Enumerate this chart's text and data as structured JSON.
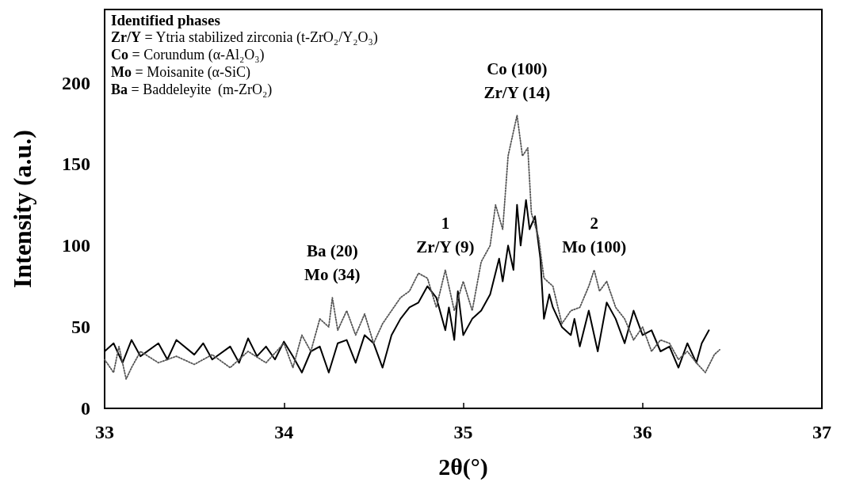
{
  "chart_data": {
    "type": "line",
    "xlabel": "2θ(°)",
    "ylabel": "Intensity (a.u.)",
    "xlim": [
      33,
      37
    ],
    "xticks": [
      33,
      34,
      35,
      36,
      37
    ],
    "ylim": [
      0,
      245
    ],
    "yticks": [
      0,
      50,
      100,
      150,
      200
    ],
    "grid": false,
    "marker": "none",
    "series": [
      {
        "color": "#000000",
        "line_style": "solid",
        "x": [
          33.0,
          33.05,
          33.1,
          33.15,
          33.2,
          33.3,
          33.35,
          33.4,
          33.5,
          33.55,
          33.6,
          33.7,
          33.75,
          33.8,
          33.85,
          33.9,
          33.95,
          34.0,
          34.05,
          34.1,
          34.15,
          34.2,
          34.25,
          34.3,
          34.35,
          34.4,
          34.45,
          34.5,
          34.55,
          34.6,
          34.65,
          34.7,
          34.75,
          34.8,
          34.85,
          34.9,
          34.92,
          34.95,
          34.97,
          35.0,
          35.05,
          35.1,
          35.15,
          35.2,
          35.22,
          35.25,
          35.28,
          35.3,
          35.32,
          35.35,
          35.37,
          35.4,
          35.43,
          35.45,
          35.48,
          35.5,
          35.55,
          35.6,
          35.62,
          35.65,
          35.7,
          35.75,
          35.8,
          35.85,
          35.9,
          35.95,
          36.0,
          36.05,
          36.1,
          36.15,
          36.2,
          36.25,
          36.3,
          36.33,
          36.37
        ],
        "values": [
          35,
          40,
          28,
          42,
          32,
          40,
          30,
          42,
          33,
          40,
          30,
          38,
          28,
          43,
          32,
          38,
          30,
          41,
          32,
          22,
          35,
          38,
          22,
          40,
          42,
          28,
          45,
          40,
          25,
          45,
          55,
          62,
          65,
          75,
          68,
          48,
          62,
          42,
          72,
          45,
          55,
          60,
          70,
          92,
          78,
          100,
          85,
          125,
          100,
          128,
          110,
          118,
          92,
          55,
          70,
          62,
          50,
          45,
          55,
          38,
          60,
          35,
          65,
          55,
          40,
          60,
          45,
          48,
          35,
          38,
          25,
          40,
          28,
          40,
          48
        ]
      },
      {
        "color": "#555555",
        "line_style": "dotted",
        "x": [
          33.0,
          33.05,
          33.08,
          33.12,
          33.15,
          33.2,
          33.3,
          33.4,
          33.5,
          33.6,
          33.7,
          33.8,
          33.9,
          34.0,
          34.05,
          34.1,
          34.15,
          34.2,
          34.25,
          34.27,
          34.3,
          34.35,
          34.4,
          34.45,
          34.5,
          34.55,
          34.6,
          34.65,
          34.7,
          34.75,
          34.8,
          34.85,
          34.9,
          34.95,
          35.0,
          35.05,
          35.1,
          35.15,
          35.18,
          35.22,
          35.25,
          35.3,
          35.33,
          35.36,
          35.38,
          35.42,
          35.45,
          35.5,
          35.55,
          35.6,
          35.65,
          35.7,
          35.73,
          35.76,
          35.8,
          35.85,
          35.9,
          35.95,
          36.0,
          36.05,
          36.1,
          36.15,
          36.2,
          36.25,
          36.3,
          36.35,
          36.4,
          36.43
        ],
        "values": [
          30,
          22,
          38,
          18,
          25,
          35,
          28,
          32,
          27,
          33,
          25,
          35,
          28,
          40,
          25,
          45,
          35,
          55,
          50,
          68,
          48,
          60,
          45,
          58,
          40,
          52,
          60,
          68,
          72,
          83,
          80,
          62,
          85,
          60,
          78,
          60,
          90,
          100,
          125,
          110,
          155,
          180,
          155,
          160,
          120,
          105,
          80,
          75,
          52,
          60,
          62,
          75,
          85,
          72,
          78,
          62,
          55,
          42,
          50,
          35,
          42,
          40,
          30,
          35,
          28,
          22,
          33,
          36
        ]
      }
    ],
    "annotations": [
      "Identified phases",
      "Zr/Y = Ytria stabilized zirconia (t-ZrO₂/Y₂O₃)",
      "Co = Corundum (α-Al₂O₃)",
      "Mo = Moisanite (α-SiC)",
      "Ba = Baddeleyite  (m-ZrO₂)",
      {
        "text": "Ba (20)\nMo (34)",
        "x": 34.27,
        "y": 68
      },
      {
        "text": "1\nZr/Y (9)",
        "x": 34.9,
        "y": 85
      },
      {
        "text": "Co (100)\nZr/Y (14)",
        "x": 35.3,
        "y": 180
      },
      {
        "text": "2\nMo (100)",
        "x": 35.73,
        "y": 85
      }
    ]
  }
}
